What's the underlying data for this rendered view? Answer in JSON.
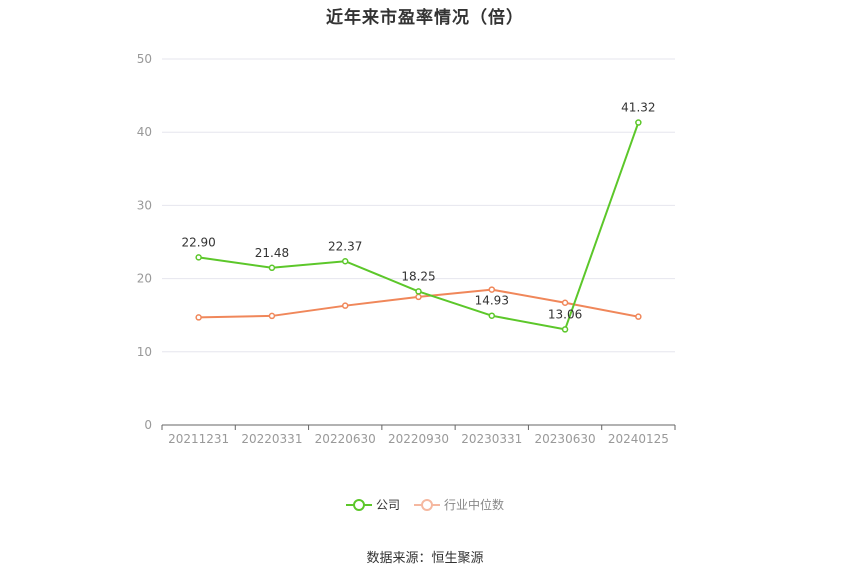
{
  "chart_data": {
    "type": "line",
    "title": "近年来市盈率情况（倍）",
    "categories": [
      "20211231",
      "20220331",
      "20220630",
      "20220930",
      "20230331",
      "20230630",
      "20240125"
    ],
    "ylim": [
      0,
      50
    ],
    "yticks": [
      0,
      10,
      20,
      30,
      40,
      50
    ],
    "grid": true,
    "legend_position": "bottom-center",
    "series": [
      {
        "name": "公司",
        "color": "#5cc72a",
        "values": [
          22.9,
          21.48,
          22.37,
          18.25,
          14.93,
          13.06,
          41.32
        ],
        "labels": [
          "22.90",
          "21.48",
          "22.37",
          "18.25",
          "14.93",
          "13.06",
          "41.32"
        ]
      },
      {
        "name": "行业中位数",
        "color": "#f0875a",
        "values": [
          14.7,
          14.9,
          16.3,
          17.5,
          18.5,
          16.7,
          14.8
        ]
      }
    ]
  },
  "source_text": "数据来源：恒生聚源"
}
